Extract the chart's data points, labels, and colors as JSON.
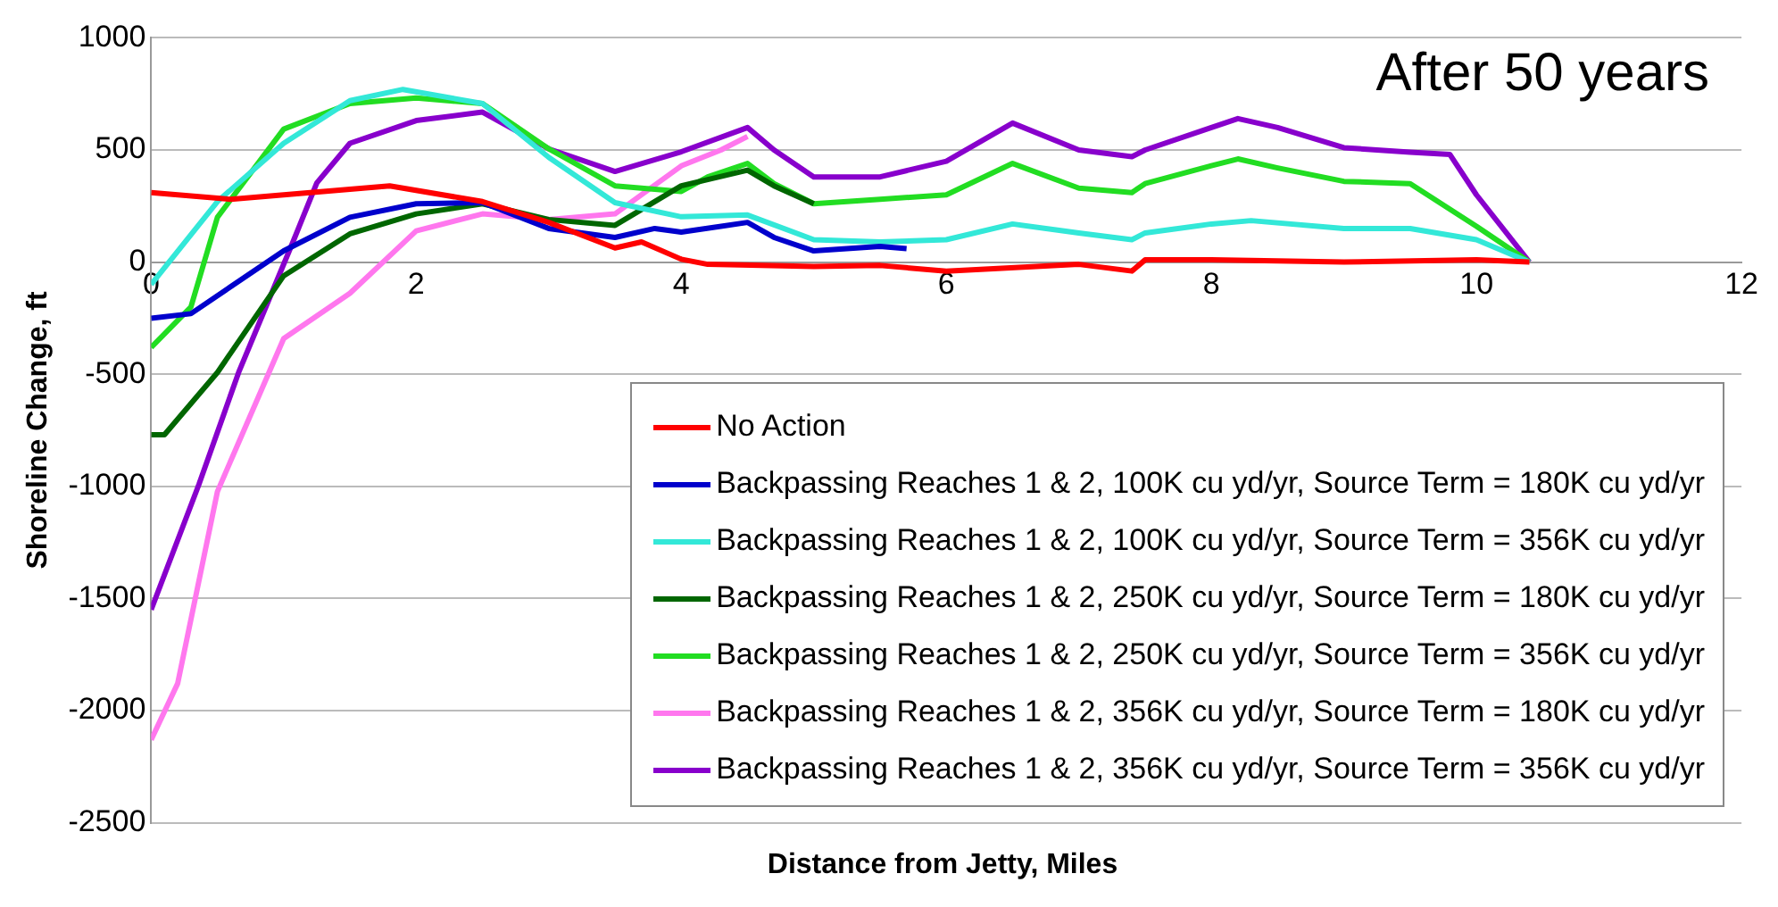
{
  "chart_data": {
    "type": "line",
    "xlabel": "Distance from Jetty, Miles",
    "ylabel": "Shoreline Change, ft",
    "annotations": [
      "After 50 years"
    ],
    "xlim": [
      0,
      12
    ],
    "xticks": [
      0,
      2,
      4,
      6,
      8,
      10,
      12
    ],
    "ylim": [
      -2500,
      1000
    ],
    "yticks": [
      -2500,
      -2000,
      -1500,
      -1000,
      -500,
      0,
      500,
      1000
    ],
    "grid": "y",
    "legend": "bottom right",
    "marker": "none",
    "line_style": "solid",
    "series": [
      {
        "name": "No Action",
        "color": "#ff0000",
        "x": [
          0,
          0.6,
          1.2,
          1.8,
          2.5,
          3,
          3.5,
          3.7,
          4,
          4.2,
          5,
          5.5,
          6,
          7,
          7.4,
          7.5,
          8,
          9,
          10,
          10.4
        ],
        "values": [
          310,
          280,
          310,
          340,
          270,
          177,
          63,
          90,
          13,
          -10,
          -20,
          -15,
          -40,
          -10,
          -40,
          10,
          10,
          0,
          10,
          0
        ]
      },
      {
        "name": "Backpassing Reaches 1 & 2, 100K cu yd/yr, Source Term = 180K cu yd/yr",
        "color": "#0000cc",
        "x": [
          0,
          0.3,
          1,
          1.5,
          2,
          2.5,
          3,
          3.5,
          3.8,
          4,
          4.5,
          4.7,
          5,
          5.5,
          5.7
        ],
        "values": [
          -250,
          -230,
          50,
          200,
          260,
          265,
          150,
          110,
          150,
          134,
          177,
          110,
          50,
          70,
          60
        ]
      },
      {
        "name": "Backpassing Reaches 1 & 2, 100K cu yd/yr, Source Term = 356K cu yd/yr",
        "color": "#33e8d8",
        "x": [
          0,
          0.5,
          1,
          1.5,
          1.9,
          2.5,
          3,
          3.5,
          4,
          4.5,
          5,
          5.5,
          6,
          6.5,
          7,
          7.4,
          7.5,
          8,
          8.3,
          9,
          9.5,
          10,
          10.4
        ],
        "values": [
          -100,
          270,
          530,
          720,
          770,
          707,
          467,
          265,
          202,
          210,
          100,
          90,
          100,
          170,
          130,
          100,
          130,
          170,
          185,
          150,
          150,
          100,
          0
        ]
      },
      {
        "name": "Backpassing Reaches 1 & 2, 250K cu yd/yr, Source Term = 180K cu yd/yr",
        "color": "#006600",
        "x": [
          0,
          0.1,
          0.5,
          1,
          1.5,
          2,
          2.5,
          3,
          3.5,
          4,
          4.5,
          4.7,
          5
        ],
        "values": [
          -770,
          -770,
          -492,
          -61,
          126,
          215,
          260,
          190,
          164,
          340,
          410,
          340,
          260
        ]
      },
      {
        "name": "Backpassing Reaches 1 & 2, 250K cu yd/yr, Source Term = 356K cu yd/yr",
        "color": "#22dd22",
        "x": [
          0,
          0.3,
          0.5,
          1,
          1.5,
          2,
          2.5,
          3,
          3.5,
          4,
          4.2,
          4.5,
          4.7,
          5,
          5.5,
          6,
          6.5,
          7,
          7.4,
          7.5,
          8,
          8.2,
          8.5,
          9,
          9.5,
          10,
          10.4
        ],
        "values": [
          -380,
          -200,
          200,
          593,
          707,
          732,
          707,
          505,
          340,
          315,
          380,
          440,
          350,
          260,
          280,
          300,
          440,
          330,
          310,
          350,
          430,
          460,
          420,
          360,
          350,
          160,
          0
        ]
      },
      {
        "name": "Backpassing Reaches 1 & 2, 356K cu yd/yr, Source Term = 180K cu yd/yr",
        "color": "#ff77ee",
        "x": [
          0,
          0.2,
          0.5,
          1,
          1.5,
          2,
          2.5,
          3,
          3.5,
          4,
          4.3,
          4.5
        ],
        "values": [
          -2130,
          -1879,
          -1023,
          -341,
          -139,
          139,
          215,
          190,
          215,
          429,
          500,
          560
        ]
      },
      {
        "name": "Backpassing Reaches 1 & 2, 356K cu yd/yr, Source Term = 356K cu yd/yr",
        "color": "#8800cc",
        "x": [
          0,
          0.36,
          0.66,
          1.07,
          1.25,
          1.5,
          2,
          2.5,
          3,
          3.5,
          4,
          4.5,
          4.7,
          5,
          5.5,
          6,
          6.5,
          7,
          7.4,
          7.5,
          8,
          8.2,
          8.5,
          9,
          9.5,
          9.8,
          10,
          10.4
        ],
        "values": [
          -1550,
          -992,
          -492,
          90,
          353,
          530,
          631,
          669,
          505,
          404,
          492,
          600,
          500,
          380,
          380,
          450,
          620,
          500,
          470,
          500,
          600,
          640,
          600,
          510,
          490,
          480,
          300,
          0
        ]
      }
    ]
  }
}
